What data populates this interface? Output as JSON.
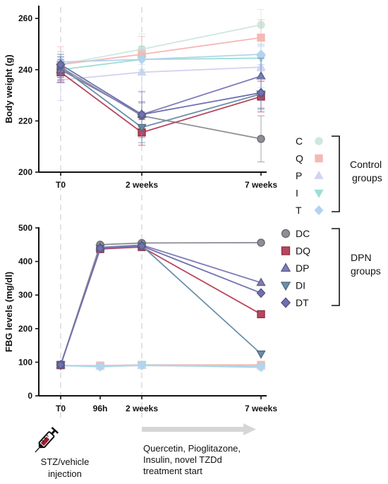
{
  "chart_data": [
    {
      "type": "line",
      "ylabel": "Body weight (g)",
      "categories": [
        "T0",
        "2 weeks",
        "7 weeks"
      ],
      "ylim": [
        200,
        265
      ],
      "yticks": [
        "200",
        "220",
        "240",
        "260"
      ],
      "series": [
        {
          "name": "C",
          "color": "#cfe7df",
          "marker": "circle",
          "values": [
            242,
            248,
            257.5
          ],
          "err": [
            5,
            6,
            6
          ]
        },
        {
          "name": "Q",
          "color": "#f5b8b4",
          "marker": "square",
          "values": [
            242,
            246,
            252.5
          ],
          "err": [
            7,
            7,
            7
          ]
        },
        {
          "name": "P",
          "color": "#d2d2f4",
          "marker": "triangle-up",
          "values": [
            236,
            239,
            241
          ],
          "err": [
            8,
            8,
            8
          ]
        },
        {
          "name": "I",
          "color": "#9fded3",
          "marker": "triangle-down",
          "values": [
            240,
            244,
            244.5
          ],
          "err": [
            5,
            5,
            5
          ]
        },
        {
          "name": "T",
          "color": "#b3d3ee",
          "marker": "diamond",
          "values": [
            243,
            244,
            246
          ],
          "err": [
            4,
            4,
            4
          ]
        },
        {
          "name": "DC",
          "color": "#8e8e96",
          "marker": "circle",
          "values": [
            241,
            222,
            213
          ],
          "err": [
            4,
            5,
            9
          ]
        },
        {
          "name": "DQ",
          "color": "#b8465e",
          "marker": "square",
          "values": [
            239,
            215.5,
            229.5
          ],
          "err": [
            4,
            5,
            6
          ]
        },
        {
          "name": "DP",
          "color": "#7f7cb8",
          "marker": "triangle-up",
          "values": [
            240,
            222.5,
            237.5
          ],
          "err": [
            4,
            9,
            7
          ]
        },
        {
          "name": "DI",
          "color": "#6a8fa8",
          "marker": "triangle-down",
          "values": [
            241,
            217.5,
            230.5
          ],
          "err": [
            4,
            6,
            6
          ]
        },
        {
          "name": "DT",
          "color": "#7071b0",
          "marker": "diamond",
          "values": [
            242,
            222.5,
            231
          ],
          "err": [
            4,
            5,
            6
          ]
        }
      ]
    },
    {
      "type": "line",
      "ylabel": "FBG levels (mg/dl)",
      "x": [
        0,
        96,
        336,
        1176
      ],
      "xticks": [
        "T0",
        "96h",
        "2 weeks",
        "7 weeks"
      ],
      "ylim": [
        0,
        500
      ],
      "yticks": [
        "0",
        "100",
        "200",
        "300",
        "400",
        "500"
      ],
      "series": [
        {
          "name": "C",
          "values": [
            90,
            86,
            90,
            85
          ]
        },
        {
          "name": "Q",
          "values": [
            90,
            90,
            92,
            92
          ]
        },
        {
          "name": "P",
          "values": [
            90,
            88,
            90,
            88
          ]
        },
        {
          "name": "I",
          "values": [
            90,
            87,
            92,
            85
          ]
        },
        {
          "name": "T",
          "values": [
            90,
            88,
            91,
            88
          ]
        },
        {
          "name": "DC",
          "values": [
            92,
            450,
            455,
            456
          ]
        },
        {
          "name": "DQ",
          "values": [
            92,
            437,
            443,
            243
          ]
        },
        {
          "name": "DP",
          "values": [
            92,
            442,
            449,
            337
          ]
        },
        {
          "name": "DI",
          "values": [
            92,
            440,
            447,
            125
          ]
        },
        {
          "name": "DT",
          "values": [
            92,
            439,
            446,
            306
          ]
        }
      ]
    }
  ],
  "legend": {
    "control_items": [
      "C",
      "Q",
      "P",
      "I",
      "T"
    ],
    "dpn_items": [
      "DC",
      "DQ",
      "DP",
      "DI",
      "DT"
    ],
    "control_label_line1": "Control",
    "control_label_line2": "groups",
    "dpn_label_line1": "DPN",
    "dpn_label_line2": "groups"
  },
  "annotations": {
    "injection_line1": "STZ/vehicle",
    "injection_line2": "injection",
    "treatment_line1": "Quercetin,  Pioglitazone,",
    "treatment_line2": "Insulin,  novel TZDd",
    "treatment_line3": "treatment start"
  },
  "icons": {
    "syringe": "syringe-icon",
    "arrow": "treatment-arrow"
  }
}
